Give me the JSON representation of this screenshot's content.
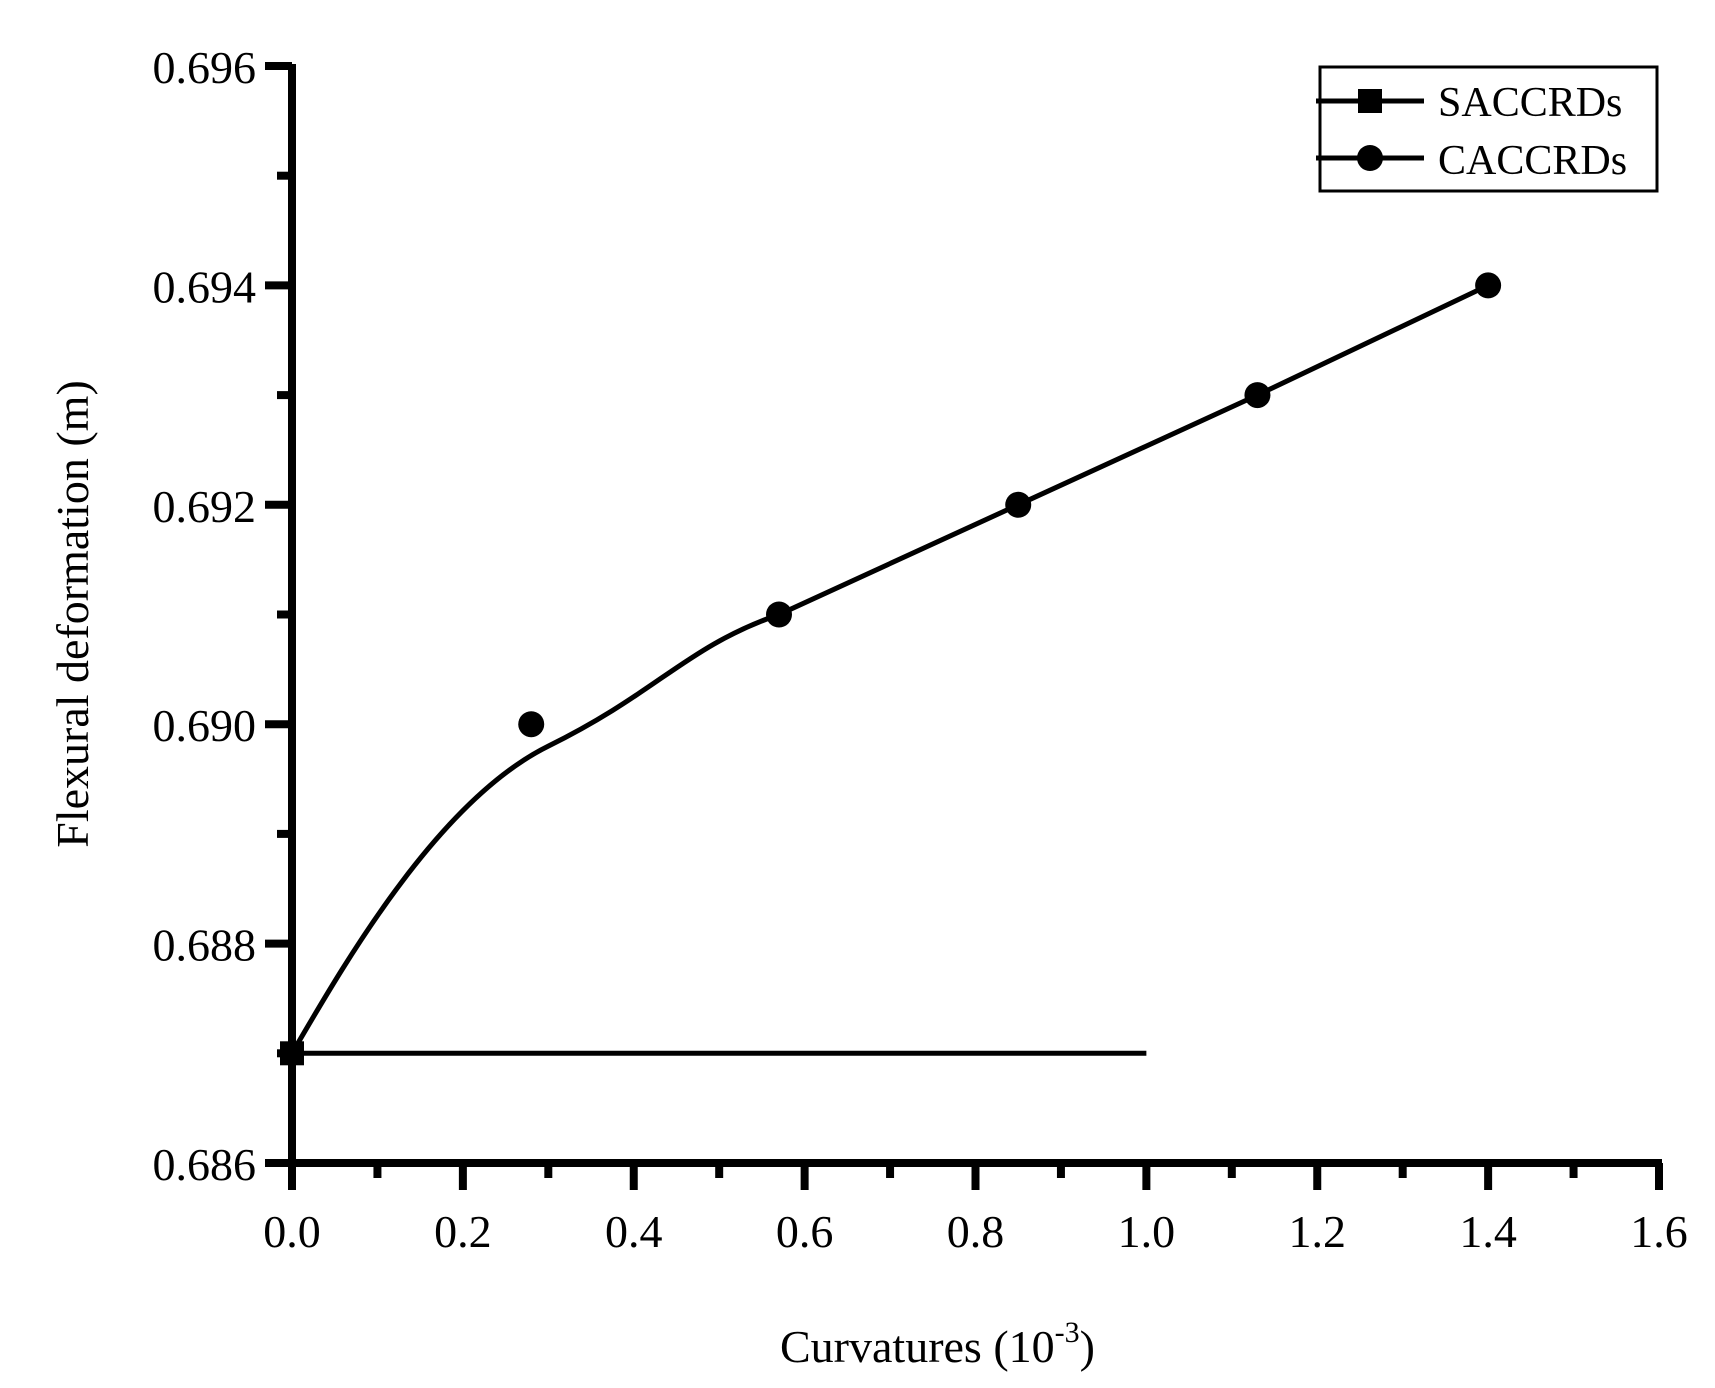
{
  "chart_data": {
    "type": "line",
    "title": "",
    "xlabel": "Curvatures (10^-3)",
    "xlabel_main": "Curvatures (10",
    "xlabel_sup": "-3",
    "xlabel_close": ")",
    "ylabel": "Flexural deformation (m)",
    "xlim": [
      0.0,
      1.6
    ],
    "ylim": [
      0.686,
      0.696
    ],
    "x_ticks": [
      "0.0",
      "0.2",
      "0.4",
      "0.6",
      "0.8",
      "1.0",
      "1.2",
      "1.4",
      "1.6"
    ],
    "y_ticks": [
      "0.686",
      "0.688",
      "0.690",
      "0.692",
      "0.694",
      "0.696"
    ],
    "grid": false,
    "legend_position": "upper right",
    "series": [
      {
        "name": "SACCRDs",
        "marker": "square",
        "color": "#000000",
        "x": [
          0.0,
          1.0
        ],
        "y": [
          0.687,
          0.687
        ]
      },
      {
        "name": "CACCRDs",
        "marker": "circle",
        "color": "#000000",
        "x": [
          0.0,
          0.28,
          0.57,
          0.85,
          1.13,
          1.4
        ],
        "y": [
          0.687,
          0.69,
          0.691,
          0.692,
          0.693,
          0.694
        ]
      }
    ]
  },
  "legend": {
    "items": [
      {
        "label": "SACCRDs"
      },
      {
        "label": "CACCRDs"
      }
    ]
  }
}
